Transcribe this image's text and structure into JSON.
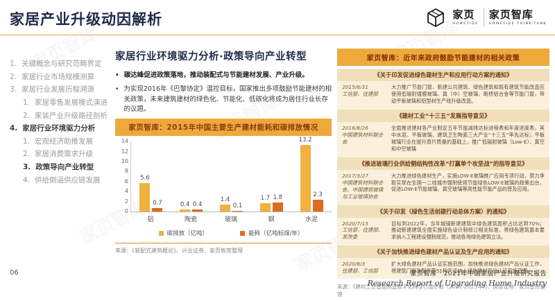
{
  "page": {
    "title": "家居产业升级动因解析",
    "page_number": "06",
    "footer_cn": "家页智库 · 2021年中国家居产业升级研究报告",
    "footer_en": "Research Report of Upgrading Home Industry"
  },
  "logo": {
    "brand_cn": "家页",
    "brand_en": "HOMETIDE",
    "thinktank_cn": "家页智库",
    "thinktank_en": "HOMETIDE THINK-TANK"
  },
  "watermark": {
    "text": "家页智库"
  },
  "sidebar": {
    "items": [
      {
        "num": "1.",
        "label": "关键概念与研究范畴界定",
        "level": 1,
        "selected": false
      },
      {
        "num": "2.",
        "label": "家居行业市场规模测算",
        "level": 1,
        "selected": false
      },
      {
        "num": "3.",
        "label": "家居行业发展历程溯源",
        "level": 1,
        "selected": false
      },
      {
        "num": "1.",
        "label": "家居零售发展模式演进",
        "level": 2,
        "selected": false
      },
      {
        "num": "2.",
        "label": "家装产业升级路径剖析",
        "level": 2,
        "selected": false
      },
      {
        "num": "4.",
        "label": "家居行业环境驱力分析",
        "level": 1,
        "selected": true
      },
      {
        "num": "1.",
        "label": "宏观经济助推发展",
        "level": 2,
        "selected": false
      },
      {
        "num": "2.",
        "label": "家居消费需求升级",
        "level": 2,
        "selected": false
      },
      {
        "num": "3.",
        "label": "政策导向产业转型",
        "level": 2,
        "selected": true
      },
      {
        "num": "4.",
        "label": "供给倒逼供应链发展",
        "level": 2,
        "selected": false
      }
    ]
  },
  "main": {
    "section_title": "家居行业环境驱力分析·政策导向产业转型",
    "bullets": [
      {
        "text": "碳达峰促进政策落地，推动装配式与节能建材发展、产业升级。",
        "bold": true
      },
      {
        "text": "为实现2016年《巴黎协定》温控目标，国家推出多项鼓励节能建材的相关政策，未来建筑建材的绿色化、节能化、低碳化将成为居住行业长存的议题。",
        "bold": false
      }
    ],
    "chart_source": "来源：《装配式建筑概论》、兴业证券、家页智库整理"
  },
  "chart_data": {
    "type": "bar",
    "title": "家页智库：2015年中国主要生产建材能耗和碳排放情况",
    "categories": [
      "铝",
      "陶瓷",
      "玻璃",
      "钢",
      "水泥"
    ],
    "series": [
      {
        "name": "碳排放（亿吨）",
        "color": "#f2b03f",
        "values": [
          5.6,
          0.4,
          1.4,
          1.7,
          13.2
        ]
      },
      {
        "name": "能耗（亿吨标煤/年）",
        "color": "#dd6b21",
        "values": [
          0.7,
          0.4,
          0.1,
          1.8,
          2.3
        ]
      }
    ],
    "ylim": [
      0,
      14
    ],
    "yticks": [
      0,
      2,
      4,
      6,
      8,
      10,
      12,
      14
    ],
    "grid": false,
    "legend_position": "bottom",
    "xlabel": "",
    "ylabel": ""
  },
  "right_panel": {
    "header": "家页智库：近年来政府鼓励节能建材的相关政策",
    "policies": [
      {
        "title": "《关于印发促进绿色建材生产和应用行动方案的通知》",
        "date": "2015/8/31",
        "agency": "工信部、住建部",
        "text": "大力推广节能门窗，新建公共建筑、绿色建筑和既有建筑节能改造应使用低辐射镀膜玻璃、真（中）空玻璃、断桥铝合金等节能门窗，带动平板玻璃和铝型材生产线升级改造。"
      },
      {
        "title": "《建材工业“十三五”发展指导意见》",
        "date": "2016/8/26",
        "agency": "中国建筑材料联合会",
        "text": "全面推进建材各产业制定五年节能减排达标进程表和年度进度表，其中水泥、平板玻璃、建筑卫生陶瓷三大产业“十三五”率先达标；平板玻璃行业在提升原片质量的基础上，推广低辐射玻璃（Low-E）、真空和中空玻璃"
      },
      {
        "title": "《推进玻璃行业供给侧结构性改革“打赢单个攻坚战”的指导意见》",
        "date": "2017/3/27",
        "agency": "中国建筑材料联合会、中国建筑玻璃与工业玻璃协会",
        "text": "大力推进绿色建材生产，实施LOW-E玻璃推广应用专项行动，努力争取实现在全国一二线城市强制使用节能绿色LOW-E玻璃的政策出台，促进LOW-E节能玻璃、真空玻璃等高性能节能产品的普及应用。"
      },
      {
        "title": "《关于印发〈绿色生活创建行动总体方案〉的通知》",
        "date": "2020/7/15",
        "agency": "工信部、住建部、发改委",
        "text": "目标到2022年，当年城镇新建建筑中绿色建筑面积占比达到70%；推动新建建筑全面实施绿色设计制修订相关标准，将绿色建筑基本要求纳入工程建设强制规范，推动各地绿色建筑立法。"
      },
      {
        "title": "《关于加快推进绿色建材产品认证及生产应用的通知》",
        "date": "2020/8/3",
        "agency": "住建部、工信部",
        "text": "扩大绿色建材产品认证实施范围，加快推进绿色建材产品认证工作，将建筑门窗及配件等51种产品纳入绿色建材产品认证实施范围。"
      }
    ],
    "source": "来源：《建材工业智能制造数字化转型行动计划（2021-2023年）》、国信证券、家页智库整理"
  },
  "colors": {
    "accent_orange": "#e8a33d",
    "header_bar": "#efa93b",
    "panel_bg": "#faf0dc",
    "policy_band": "#f1dfbc",
    "title_navy": "#1e2a4a",
    "series1": "#f2b03f",
    "series2": "#dd6b21"
  }
}
